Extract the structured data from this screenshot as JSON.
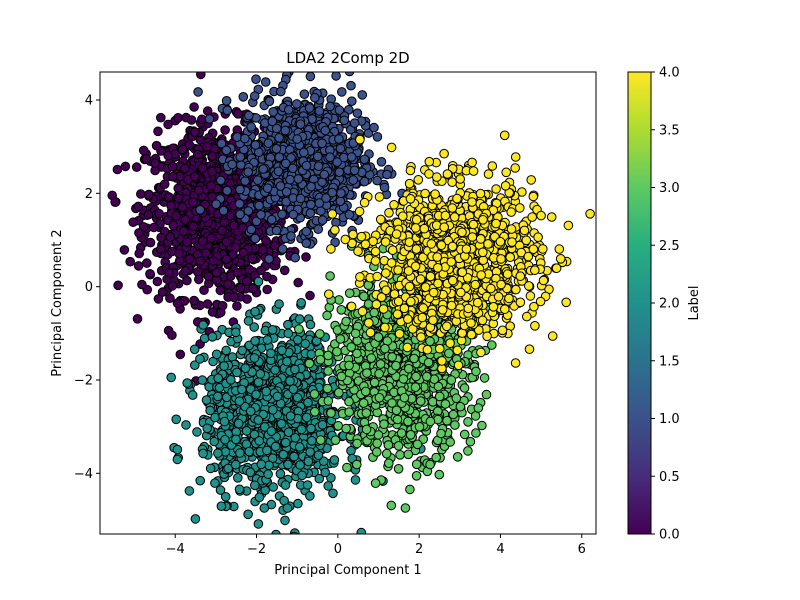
{
  "chart_data": {
    "type": "scatter",
    "title": "LDA2 2Comp 2D",
    "xlabel": "Principal Component 1",
    "ylabel": "Principal Component 2",
    "xlim": [
      -5.85,
      6.35
    ],
    "ylim": [
      -5.3,
      4.6
    ],
    "x_ticks": [
      -4,
      -2,
      0,
      2,
      4,
      6
    ],
    "y_ticks": [
      -4,
      -2,
      0,
      2,
      4
    ],
    "grid": false,
    "legend": "none",
    "marker": {
      "edge_color": "#000000",
      "shape": "circle"
    },
    "colorbar": {
      "label": "Label",
      "range": [
        0.0,
        4.0
      ],
      "ticks": [
        "0.0",
        "0.5",
        "1.0",
        "1.5",
        "2.0",
        "2.5",
        "3.0",
        "3.5",
        "4.0"
      ],
      "colormap": "viridis",
      "stops": [
        "#440154",
        "#472d7b",
        "#3b528b",
        "#2c728e",
        "#21918c",
        "#28ae80",
        "#5ec962",
        "#addc30",
        "#fde725"
      ]
    },
    "series": [
      {
        "label_value": 0,
        "color": "#440154",
        "center": [
          -3.0,
          1.6
        ],
        "spread": [
          0.85,
          0.9
        ],
        "count": 1200
      },
      {
        "label_value": 1,
        "color": "#3b528b",
        "center": [
          -0.9,
          2.7
        ],
        "spread": [
          0.75,
          0.7
        ],
        "count": 1100
      },
      {
        "label_value": 2,
        "color": "#21918c",
        "center": [
          -1.6,
          -2.7
        ],
        "spread": [
          0.85,
          0.85
        ],
        "count": 1200
      },
      {
        "label_value": 3,
        "color": "#5ec962",
        "center": [
          1.6,
          -1.7
        ],
        "spread": [
          0.85,
          0.9
        ],
        "count": 1100
      },
      {
        "label_value": 4,
        "color": "#fde725",
        "center": [
          2.9,
          0.6
        ],
        "spread": [
          1.0,
          0.8
        ],
        "count": 1200
      }
    ]
  }
}
